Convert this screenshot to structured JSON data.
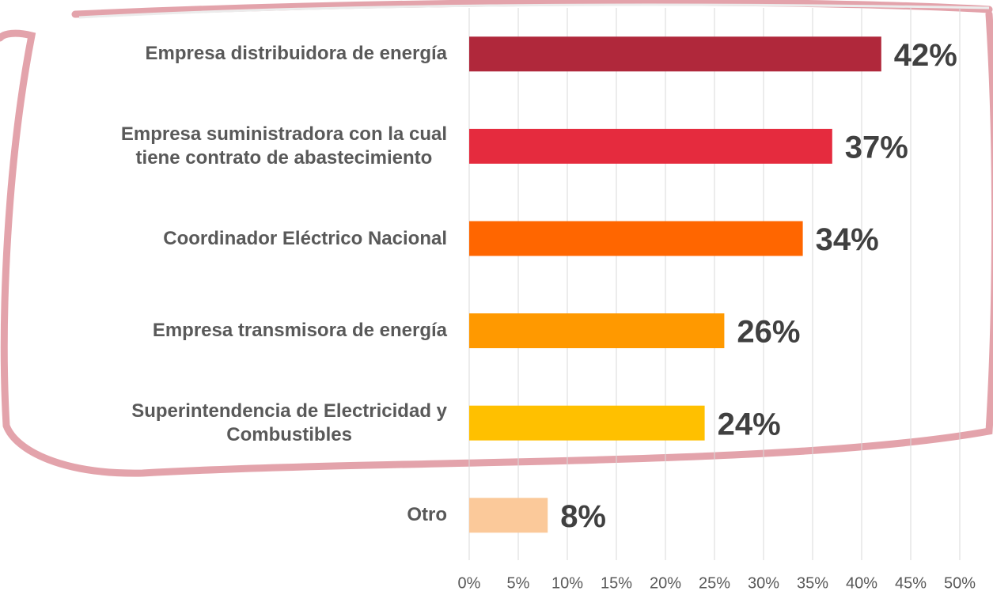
{
  "chart_data": {
    "type": "barh",
    "categories": [
      "Empresa distribuidora de energía",
      "Empresa suministradora con la cual\ntiene contrato de abastecimiento",
      "Coordinador Eléctrico Nacional",
      "Empresa transmisora de energía",
      "Superintendencia de Electricidad y\nCombustibles",
      "Otro"
    ],
    "values": [
      42,
      37,
      34,
      26,
      24,
      8
    ],
    "value_labels": [
      "42%",
      "37%",
      "34%",
      "26%",
      "24%",
      "8%"
    ],
    "colors": [
      "#b0283b",
      "#e52b3e",
      "#ff6600",
      "#ff9900",
      "#ffc000",
      "#fbc99a"
    ],
    "xlim": [
      0,
      50
    ],
    "xticks": [
      {
        "value": 0,
        "label": "0%"
      },
      {
        "value": 5,
        "label": "5%"
      },
      {
        "value": 10,
        "label": "10%"
      },
      {
        "value": 15,
        "label": "15%"
      },
      {
        "value": 20,
        "label": "20%"
      },
      {
        "value": 25,
        "label": "25%"
      },
      {
        "value": 30,
        "label": "30%"
      },
      {
        "value": 35,
        "label": "35%"
      },
      {
        "value": 40,
        "label": "40%"
      },
      {
        "value": 45,
        "label": "45%"
      },
      {
        "value": 50,
        "label": "50%"
      }
    ],
    "grid": true
  }
}
